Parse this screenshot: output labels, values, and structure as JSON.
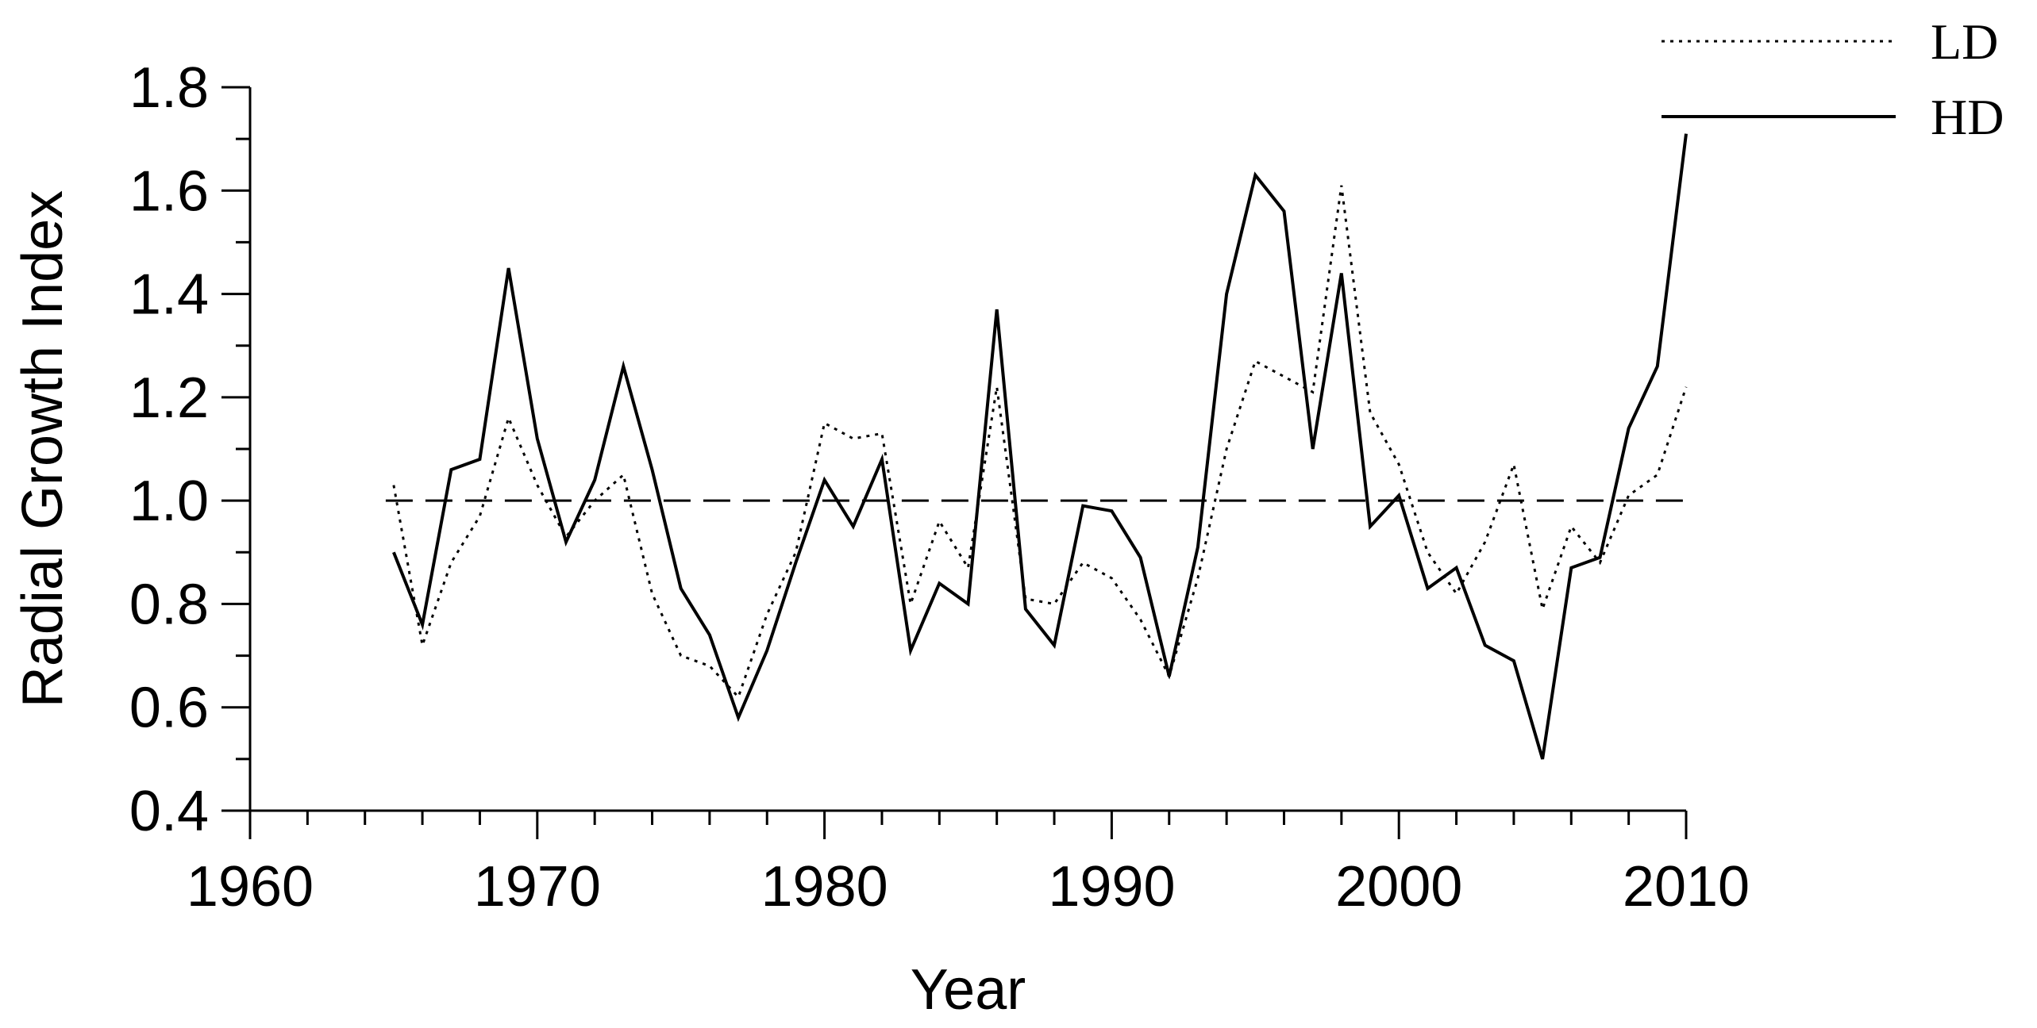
{
  "chart_data": {
    "type": "line",
    "xlabel": "Year",
    "ylabel": "Radial Growth Index",
    "xlim": [
      1960,
      2010
    ],
    "ylim": [
      0.4,
      1.8
    ],
    "x_major_ticks": [
      1960,
      1970,
      1980,
      1990,
      2000,
      2010
    ],
    "x_tick_labels": [
      "1960",
      "1970",
      "1980",
      "1990",
      "2000",
      "2010"
    ],
    "y_major_ticks": [
      0.4,
      0.6,
      0.8,
      1.0,
      1.2,
      1.4,
      1.6,
      1.8
    ],
    "y_tick_labels": [
      "0.4",
      "0.6",
      "0.8",
      "1.0",
      "1.2",
      "1.4",
      "1.6",
      "1.8"
    ],
    "grid": false,
    "legend_position": "top-right",
    "reference_line": {
      "y": 1.0,
      "style": "dashed"
    },
    "x": [
      1965,
      1966,
      1967,
      1968,
      1969,
      1970,
      1971,
      1972,
      1973,
      1974,
      1975,
      1976,
      1977,
      1978,
      1979,
      1980,
      1981,
      1982,
      1983,
      1984,
      1985,
      1986,
      1987,
      1988,
      1989,
      1990,
      1991,
      1992,
      1993,
      1994,
      1995,
      1996,
      1997,
      1998,
      1999,
      2000,
      2001,
      2002,
      2003,
      2004,
      2005,
      2006,
      2007,
      2008,
      2009,
      2010
    ],
    "series": [
      {
        "name": "LD",
        "style": "dotted",
        "values": [
          1.03,
          0.72,
          0.88,
          0.97,
          1.16,
          1.03,
          0.93,
          1.0,
          1.05,
          0.82,
          0.7,
          0.68,
          0.62,
          0.78,
          0.9,
          1.15,
          1.12,
          1.13,
          0.8,
          0.96,
          0.87,
          1.22,
          0.81,
          0.8,
          0.88,
          0.85,
          0.77,
          0.66,
          0.85,
          1.1,
          1.27,
          1.24,
          1.21,
          1.61,
          1.17,
          1.07,
          0.9,
          0.82,
          0.92,
          1.07,
          0.79,
          0.95,
          0.88,
          1.01,
          1.05,
          1.22
        ]
      },
      {
        "name": "HD",
        "style": "solid",
        "values": [
          0.9,
          0.76,
          1.06,
          1.08,
          1.45,
          1.12,
          0.92,
          1.04,
          1.26,
          1.06,
          0.83,
          0.74,
          0.58,
          0.71,
          0.88,
          1.04,
          0.95,
          1.08,
          0.71,
          0.84,
          0.8,
          1.37,
          0.79,
          0.72,
          0.99,
          0.98,
          0.89,
          0.66,
          0.91,
          1.4,
          1.63,
          1.56,
          1.1,
          1.44,
          0.95,
          1.01,
          0.83,
          0.87,
          0.72,
          0.69,
          0.5,
          0.87,
          0.89,
          1.14,
          1.26,
          1.71
        ]
      }
    ]
  }
}
